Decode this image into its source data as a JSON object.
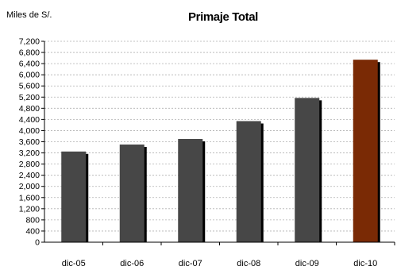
{
  "chart_data": {
    "type": "bar",
    "title": "Primaje Total",
    "unit_label": "Miles de S/.",
    "categories": [
      "dic-05",
      "dic-06",
      "dic-07",
      "dic-08",
      "dic-09",
      "dic-10"
    ],
    "values": [
      3250,
      3500,
      3700,
      4340,
      5170,
      6540
    ],
    "ylim": [
      0,
      7200
    ],
    "ytick_step": 400,
    "yticks": [
      "0",
      "400",
      "800",
      "1,200",
      "1,600",
      "2,000",
      "2,400",
      "2,800",
      "3,200",
      "3,600",
      "4,000",
      "4,400",
      "4,800",
      "5,200",
      "5,600",
      "6,000",
      "6,400",
      "6,800",
      "7,200"
    ],
    "grid": true,
    "colors": {
      "bar": "#474747",
      "highlight_bar": "#7a2a05",
      "shadow": "#000000",
      "grid": "#b0b0b0"
    },
    "highlight_index": 5
  }
}
